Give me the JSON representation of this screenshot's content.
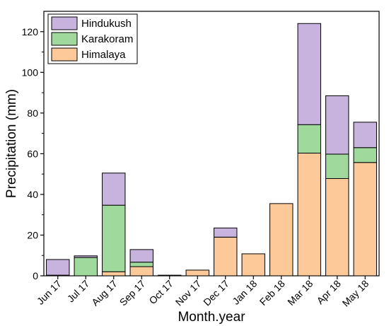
{
  "chart_data": {
    "type": "bar",
    "stacked": true,
    "categories": [
      "Jun 17",
      "Jul 17",
      "Aug 17",
      "Sep 17",
      "Oct 17",
      "Nov 17",
      "Dec 17",
      "Jan 18",
      "Feb 18",
      "Mar 18",
      "Apr 18",
      "May 18"
    ],
    "series": [
      {
        "name": "Himalaya",
        "color": "#fdc999",
        "values": [
          0.3,
          0,
          2,
          4.5,
          0.3,
          2.8,
          19,
          10.8,
          35.5,
          60.3,
          47.8,
          55.7
        ]
      },
      {
        "name": "Karakoram",
        "color": "#9fd99b",
        "values": [
          0,
          9,
          32.7,
          2.2,
          0,
          0,
          0,
          0,
          0,
          14,
          12,
          7.3
        ]
      },
      {
        "name": "Hindukush",
        "color": "#c8b3df",
        "values": [
          7.7,
          0.8,
          15.8,
          6.2,
          0,
          0,
          4.5,
          0,
          0,
          49.7,
          28.7,
          12.5
        ]
      }
    ],
    "xlabel": "Month.year",
    "ylabel": "Precipitation (mm)",
    "ylim": [
      0,
      130
    ],
    "yticks": [
      0,
      20,
      40,
      60,
      80,
      100,
      120
    ],
    "legend": {
      "position": "top-left",
      "order": [
        "Hindukush",
        "Karakoram",
        "Himalaya"
      ]
    },
    "grid": false
  }
}
